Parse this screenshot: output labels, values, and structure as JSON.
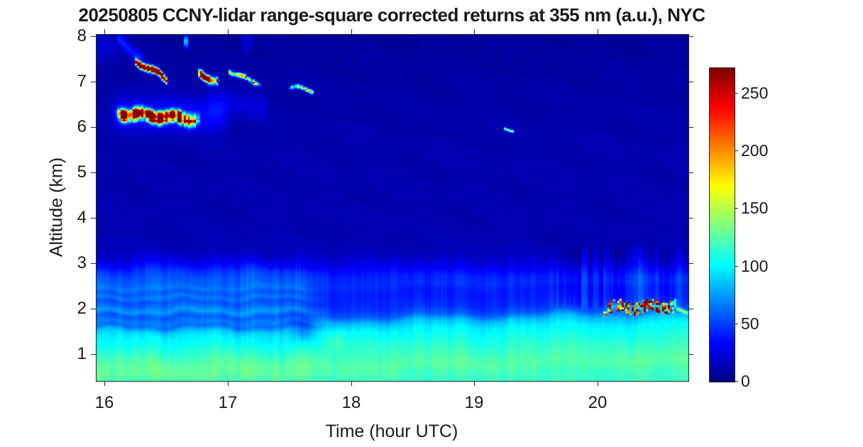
{
  "figure": {
    "background": "#ffffff",
    "text_color": "#1a1a1a",
    "axis_color": "#262626"
  },
  "chart_data": {
    "type": "heatmap",
    "title": "20250805 CCNY-lidar range-square corrected returns at 355 nm (a.u.), NYC",
    "xlabel": "Time (hour UTC)",
    "ylabel": "Altitude (km)",
    "x_range": [
      15.93,
      20.73
    ],
    "y_range": [
      0.42,
      8.05
    ],
    "x_ticks": [
      16,
      17,
      18,
      19,
      20
    ],
    "y_ticks": [
      1,
      2,
      3,
      4,
      5,
      6,
      7,
      8
    ],
    "colormap": "jet",
    "colorbar": {
      "range": [
        0,
        272
      ],
      "ticks": [
        0,
        50,
        100,
        150,
        200,
        250
      ]
    },
    "profile_transition_hours": [
      17.45,
      17.95
    ],
    "background_profile_early": [
      [
        0.42,
        122
      ],
      [
        0.6,
        130
      ],
      [
        0.8,
        127
      ],
      [
        1.0,
        116
      ],
      [
        1.2,
        106
      ],
      [
        1.4,
        98
      ],
      [
        1.5,
        90
      ],
      [
        1.62,
        64
      ],
      [
        1.72,
        68
      ],
      [
        1.84,
        58
      ],
      [
        1.96,
        76
      ],
      [
        2.06,
        64
      ],
      [
        2.16,
        56
      ],
      [
        2.26,
        67
      ],
      [
        2.36,
        58
      ],
      [
        2.47,
        67
      ],
      [
        2.58,
        60
      ],
      [
        2.7,
        57
      ],
      [
        2.84,
        48
      ],
      [
        3.0,
        33
      ],
      [
        3.15,
        22
      ],
      [
        3.35,
        15
      ],
      [
        3.8,
        13
      ],
      [
        5.5,
        12
      ],
      [
        7.0,
        10
      ],
      [
        8.05,
        7
      ]
    ],
    "background_profile_late": [
      [
        0.42,
        118
      ],
      [
        0.7,
        126
      ],
      [
        1.0,
        117
      ],
      [
        1.3,
        107
      ],
      [
        1.5,
        99
      ],
      [
        1.66,
        84
      ],
      [
        1.8,
        58
      ],
      [
        1.95,
        47
      ],
      [
        2.1,
        43
      ],
      [
        2.3,
        41
      ],
      [
        2.5,
        46
      ],
      [
        2.7,
        43
      ],
      [
        2.85,
        35
      ],
      [
        3.0,
        26
      ],
      [
        3.2,
        17
      ],
      [
        3.5,
        13
      ],
      [
        5.5,
        12
      ],
      [
        7.0,
        10
      ],
      [
        8.05,
        7
      ]
    ],
    "boundary_layer": {
      "rise_start_hour": 17.9,
      "rise_end_hour": 20.5,
      "rise_km": 0.14,
      "notch": {
        "t": 17.6,
        "alt": 1.55,
        "depth": 28
      },
      "plume": {
        "t": 17.87,
        "alt": 1.3,
        "boost": 14
      }
    },
    "striping": {
      "onset_hour": 19.5,
      "alt_range": [
        2.05,
        3.35
      ],
      "amplitude": 26
    },
    "cloud_features": [
      {
        "name": "cirrus-main",
        "t": [
          16.07,
          16.78
        ],
        "alt": [
          6.33,
          6.17
        ],
        "sigma": 0.12,
        "peak": 330,
        "lumpy": true
      },
      {
        "name": "cirrus-main-halo",
        "t": [
          16.0,
          17.05
        ],
        "alt": [
          6.35,
          6.25
        ],
        "sigma": 0.38,
        "peak": 24
      },
      {
        "name": "cirrus-diagonal",
        "t": [
          16.23,
          16.52
        ],
        "alt": [
          7.52,
          7.02
        ],
        "sigma": 0.07,
        "peak": 330,
        "lumpy": true
      },
      {
        "name": "wisp-topleft-diagonal",
        "t": [
          16.08,
          16.32
        ],
        "alt": [
          8.0,
          7.5
        ],
        "sigma": 0.13,
        "peak": 30
      },
      {
        "name": "top-edge-dash",
        "t": [
          16.63,
          16.68
        ],
        "alt": [
          7.95,
          7.95
        ],
        "sigma": 0.13,
        "peak": 80
      },
      {
        "name": "cirrus-second",
        "t": [
          16.75,
          16.93
        ],
        "alt": [
          7.18,
          7.03
        ],
        "sigma": 0.08,
        "peak": 260,
        "lumpy": true
      },
      {
        "name": "dash-pair-left",
        "t": [
          16.99,
          17.1
        ],
        "alt": [
          7.26,
          7.2
        ],
        "sigma": 0.05,
        "peak": 120,
        "lumpy": true
      },
      {
        "name": "dash-pair-right",
        "t": [
          17.07,
          17.26
        ],
        "alt": [
          7.12,
          7.0
        ],
        "sigma": 0.05,
        "peak": 185,
        "lumpy": true
      },
      {
        "name": "thin-streak",
        "t": [
          17.49,
          17.7
        ],
        "alt": [
          6.88,
          6.83
        ],
        "sigma": 0.045,
        "peak": 135,
        "lumpy": true
      },
      {
        "name": "faint-wisp-mid",
        "t": [
          16.8,
          17.35
        ],
        "alt": [
          6.6,
          6.45
        ],
        "sigma": 0.3,
        "peak": 13
      },
      {
        "name": "faint-vertical-wisp",
        "t": [
          17.1,
          17.2
        ],
        "alt": [
          7.9,
          7.9
        ],
        "sigma": 0.25,
        "peak": 16
      },
      {
        "name": "tiny-dash",
        "t": [
          19.23,
          19.32
        ],
        "alt": [
          5.97,
          5.97
        ],
        "sigma": 0.032,
        "peak": 130
      },
      {
        "name": "speckle-cloud",
        "t": [
          20.03,
          20.63
        ],
        "alt": [
          2.03,
          2.08
        ],
        "sigma": 0.09,
        "peak": 40,
        "speckle": true
      },
      {
        "name": "speckle-tail",
        "t": [
          20.62,
          20.73
        ],
        "alt": [
          1.97,
          1.97
        ],
        "sigma": 0.035,
        "peak": 85
      }
    ]
  }
}
